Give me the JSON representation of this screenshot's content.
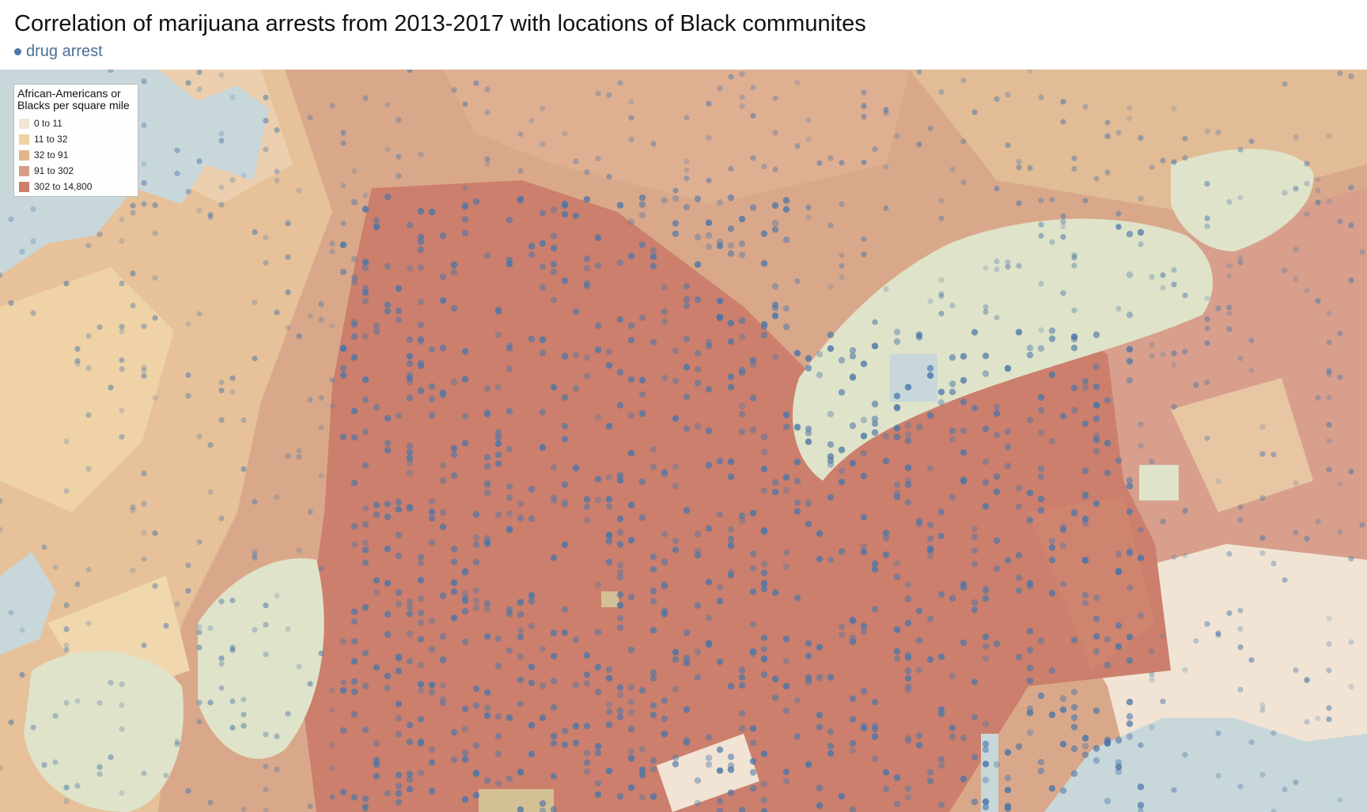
{
  "header": {
    "title": "Correlation of marijuana arrests from 2013-2017 with locations of Black communites",
    "dot_legend_label": "drug arrest",
    "dot_color": "#4a76a8"
  },
  "legend": {
    "title": "African-Americans or Blacks per square mile",
    "items": [
      {
        "label": "0 to 11",
        "color": "#f1e6d6"
      },
      {
        "label": "11 to 32",
        "color": "#f0d3a0"
      },
      {
        "label": "32 to 91",
        "color": "#e2b68c"
      },
      {
        "label": "91 to 302",
        "color": "#d69d86"
      },
      {
        "label": "302 to 14,800",
        "color": "#cc7f6c"
      }
    ]
  },
  "map": {
    "colors": {
      "water": "#c8d7da",
      "park": "#dfe3c9",
      "sand": "#d3c095",
      "arrest_dot": "#4a76a8"
    }
  }
}
